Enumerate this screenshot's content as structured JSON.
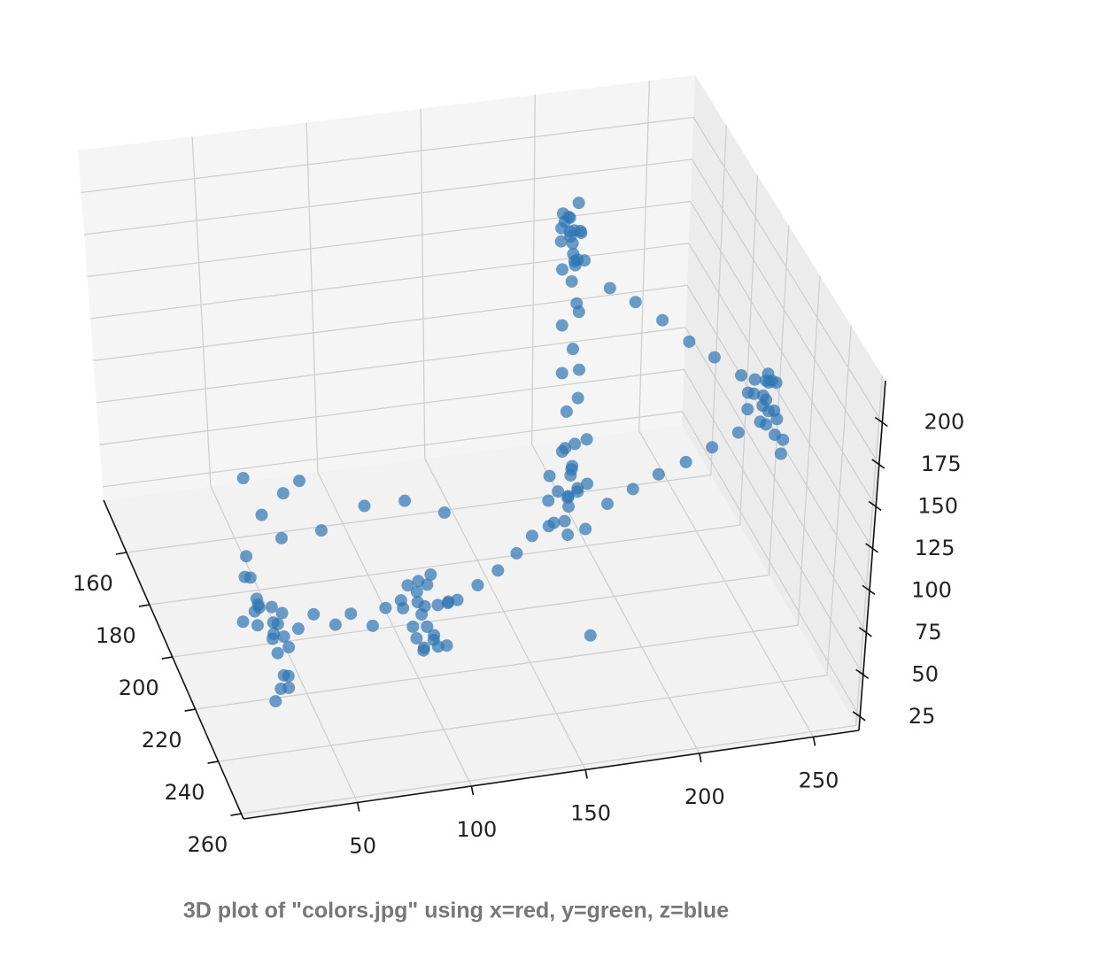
{
  "chart_data": {
    "type": "scatter3d",
    "title": "3D plot of \"colors.jpg\" using x=red, y=green, z=blue",
    "color": "#2f75b2",
    "xlim": [
      0,
      270
    ],
    "xticks": [
      50,
      100,
      150,
      200,
      250
    ],
    "ylim": [
      140,
      262
    ],
    "yticks": [
      160,
      180,
      200,
      220,
      240,
      260
    ],
    "zlim": [
      17,
      225
    ],
    "zticks": [
      25,
      50,
      75,
      100,
      125,
      150,
      175,
      200
    ],
    "grid": true,
    "x": [
      30,
      35,
      40,
      38,
      33,
      42,
      36,
      29,
      45,
      37,
      34,
      39,
      41,
      31,
      36,
      43,
      38,
      35,
      32,
      40,
      37,
      44,
      100,
      104,
      108,
      112,
      98,
      106,
      110,
      103,
      107,
      101,
      114,
      105,
      109,
      99,
      111,
      106,
      102,
      108,
      104,
      113,
      97,
      107,
      186,
      190,
      192,
      188,
      194,
      185,
      191,
      189,
      193,
      187,
      190,
      195,
      184,
      192,
      188,
      191,
      186,
      190,
      193,
      189,
      189,
      192,
      188,
      191,
      190,
      187,
      193,
      190,
      188,
      191,
      193,
      186,
      190,
      192,
      189,
      194,
      187,
      190,
      191,
      188,
      193,
      189,
      186,
      192,
      190,
      191,
      188,
      189,
      260,
      263,
      266,
      268,
      262,
      265,
      267,
      261,
      264,
      269,
      266,
      263,
      260,
      265,
      268,
      262,
      264,
      267,
      263,
      266,
      50,
      58,
      66,
      74,
      82,
      90,
      122,
      134,
      146,
      158,
      168,
      178,
      205,
      215,
      225,
      235,
      245,
      255,
      205,
      215,
      225,
      235,
      245,
      255,
      40,
      45,
      60,
      70,
      35,
      55,
      75,
      100,
      120,
      135,
      180
    ],
    "y": [
      205,
      210,
      215,
      220,
      212,
      208,
      225,
      218,
      210,
      230,
      200,
      214,
      222,
      216,
      207,
      219,
      224,
      203,
      228,
      211,
      217,
      213,
      208,
      212,
      218,
      222,
      210,
      225,
      205,
      215,
      230,
      214,
      219,
      203,
      211,
      227,
      216,
      209,
      221,
      213,
      217,
      207,
      224,
      220,
      178,
      182,
      185,
      180,
      188,
      176,
      184,
      181,
      190,
      179,
      183,
      186,
      177,
      185,
      182,
      180,
      188,
      184,
      179,
      183,
      181,
      184,
      179,
      186,
      183,
      180,
      182,
      185,
      178,
      182,
      185,
      180,
      176,
      184,
      181,
      179,
      186,
      183,
      180,
      177,
      182,
      184,
      181,
      179,
      185,
      178,
      183,
      180,
      195,
      200,
      205,
      198,
      192,
      210,
      202,
      197,
      207,
      194,
      203,
      199,
      206,
      201,
      196,
      204,
      193,
      208,
      200,
      197,
      214,
      212,
      215,
      213,
      216,
      212,
      212,
      207,
      202,
      196,
      191,
      187,
      186,
      188,
      190,
      193,
      195,
      197,
      184,
      186,
      189,
      192,
      194,
      197,
      190,
      195,
      185,
      180,
      200,
      192,
      188,
      178,
      175,
      180,
      215
    ],
    "z": [
      40,
      55,
      35,
      60,
      48,
      42,
      30,
      66,
      50,
      38,
      58,
      45,
      32,
      70,
      52,
      44,
      36,
      62,
      28,
      56,
      47,
      41,
      40,
      55,
      35,
      62,
      48,
      42,
      30,
      66,
      50,
      38,
      58,
      45,
      32,
      70,
      52,
      44,
      36,
      60,
      28,
      56,
      47,
      41,
      30,
      45,
      60,
      75,
      40,
      55,
      85,
      35,
      70,
      50,
      65,
      90,
      42,
      58,
      80,
      48,
      38,
      72,
      62,
      52,
      100,
      112,
      120,
      132,
      140,
      150,
      160,
      170,
      180,
      188,
      195,
      200,
      205,
      210,
      215,
      220,
      185,
      192,
      198,
      203,
      208,
      212,
      218,
      190,
      196,
      202,
      207,
      214,
      110,
      125,
      118,
      130,
      115,
      105,
      135,
      122,
      112,
      128,
      120,
      108,
      132,
      117,
      126,
      114,
      124,
      110,
      119,
      129,
      46,
      50,
      47,
      49,
      45,
      48,
      47,
      46,
      45,
      44,
      45,
      43,
      50,
      60,
      70,
      80,
      90,
      100,
      175,
      168,
      160,
      150,
      142,
      134,
      100,
      85,
      80,
      78,
      70,
      65,
      60,
      55,
      50,
      48,
      20
    ]
  }
}
